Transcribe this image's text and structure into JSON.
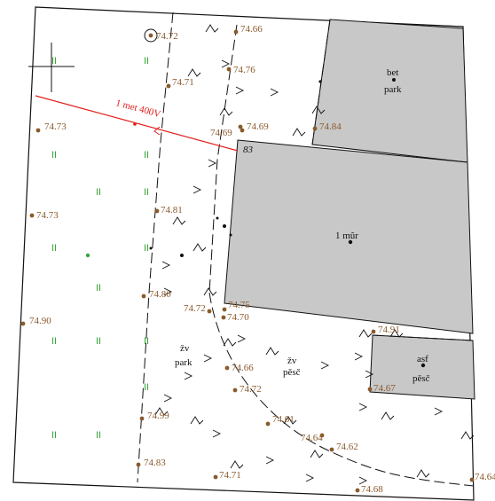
{
  "colors": {
    "height_label": "#8a5a2b",
    "height_point": "#8a5a2b",
    "building_fill": "#c8c8c8",
    "power_line": "#e0201c",
    "grass": "#3aa53a",
    "line": "#111111"
  },
  "power_line": {
    "label": "1 met 400V"
  },
  "parcel_number": "83",
  "buildings": [
    {
      "id": "bet-park",
      "label_top": "bet",
      "label_bottom": "park"
    },
    {
      "id": "mur",
      "label_top": "1 mũr",
      "label_bottom": ""
    },
    {
      "id": "asf-pesc",
      "label_top": "asf",
      "label_bottom": "pěsč"
    }
  ],
  "surface_labels": [
    {
      "top": "žv",
      "bottom": "park"
    },
    {
      "top": "žv",
      "bottom": "pěsč"
    }
  ],
  "heights": [
    "74.72",
    "74.66",
    "74.76",
    "74.71",
    "74.73",
    "74.69",
    "74.69",
    "74.84",
    "74.73",
    "74.81",
    "74.80",
    "74.90",
    "74.72",
    "74.75",
    "74.70",
    "74.91",
    "74.66",
    "74.72",
    "74.67",
    "74.61",
    "74.64",
    "74.62",
    "74.99",
    "74.83",
    "74.71",
    "74.68",
    "74.64"
  ]
}
